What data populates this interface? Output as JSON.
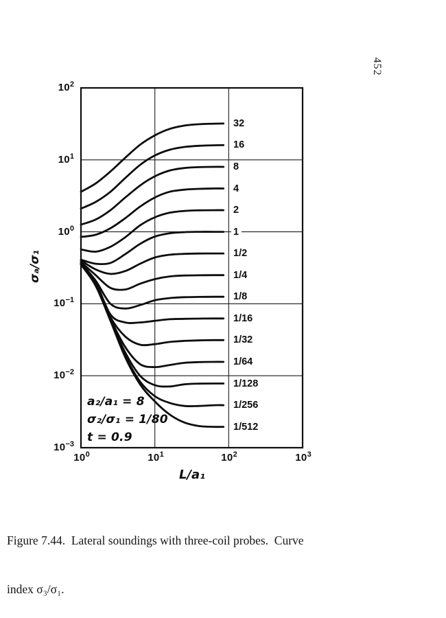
{
  "page": {
    "number": "452"
  },
  "caption": {
    "line1": "Figure 7.44.  Lateral soundings with three-coil probes.  Curve",
    "line2": "index σ₃/σ₁."
  },
  "chart_data": {
    "type": "line",
    "title": "",
    "xlabel": "L/a₁",
    "ylabel": "σₐ/σ₁",
    "xscale": "log",
    "yscale": "log",
    "xlim": [
      1,
      1000
    ],
    "ylim": [
      0.001,
      100
    ],
    "grid": true,
    "legend": "curve index labels at right of curves",
    "x_ticks": [
      {
        "base": "10",
        "exp": "0"
      },
      {
        "base": "10",
        "exp": "1"
      },
      {
        "base": "10",
        "exp": "2"
      },
      {
        "base": "10",
        "exp": "3"
      }
    ],
    "y_ticks": [
      {
        "base": "10",
        "exp": "2"
      },
      {
        "base": "10",
        "exp": "1"
      },
      {
        "base": "10",
        "exp": "0"
      },
      {
        "base": "10",
        "exp": "−1"
      },
      {
        "base": "10",
        "exp": "−2"
      },
      {
        "base": "10",
        "exp": "−3"
      }
    ],
    "annotations": [
      "a₂/a₁ = 8",
      "σ₂/σ₁ = 1/80",
      "t = 0.9"
    ],
    "x": [
      1,
      1.58,
      2.51,
      3.98,
      6.31,
      10,
      15.8,
      25.1,
      39.8,
      63.1,
      85
    ],
    "series": [
      {
        "label": "32",
        "index": 32,
        "values": [
          3.6,
          4.7,
          6.9,
          10.7,
          16.2,
          21.9,
          26.9,
          29.9,
          31.3,
          31.8,
          32
        ]
      },
      {
        "label": "16",
        "index": 16,
        "values": [
          2.1,
          2.6,
          3.6,
          5.6,
          8.5,
          11.5,
          13.8,
          15.1,
          15.7,
          15.95,
          16
        ]
      },
      {
        "label": "8",
        "index": 8,
        "values": [
          1.26,
          1.48,
          2.0,
          3.0,
          4.4,
          5.9,
          7.1,
          7.7,
          7.93,
          8.0,
          8.0
        ]
      },
      {
        "label": "4",
        "index": 4,
        "values": [
          0.85,
          0.91,
          1.12,
          1.55,
          2.24,
          3.0,
          3.6,
          3.85,
          3.96,
          4.0,
          4.0
        ]
      },
      {
        "label": "2",
        "index": 2,
        "values": [
          0.57,
          0.53,
          0.62,
          0.84,
          1.23,
          1.59,
          1.84,
          1.95,
          1.99,
          2.0,
          2.0
        ]
      },
      {
        "label": "1",
        "index": 1,
        "values": [
          0.41,
          0.36,
          0.37,
          0.49,
          0.68,
          0.86,
          0.955,
          0.99,
          1.0,
          1.0,
          1.0
        ]
      },
      {
        "label": "1/2",
        "index": 0.5,
        "values": [
          0.4,
          0.3,
          0.26,
          0.285,
          0.36,
          0.44,
          0.48,
          0.494,
          0.499,
          0.5,
          0.5
        ]
      },
      {
        "label": "1/4",
        "index": 0.25,
        "values": [
          0.38,
          0.25,
          0.166,
          0.158,
          0.19,
          0.22,
          0.24,
          0.247,
          0.249,
          0.25,
          0.25
        ]
      },
      {
        "label": "1/8",
        "index": 0.125,
        "values": [
          0.37,
          0.21,
          0.1,
          0.086,
          0.096,
          0.112,
          0.12,
          0.1235,
          0.1245,
          0.125,
          0.125
        ]
      },
      {
        "label": "1/16",
        "index": 0.0625,
        "values": [
          0.36,
          0.2,
          0.071,
          0.055,
          0.055,
          0.058,
          0.061,
          0.0618,
          0.0622,
          0.0625,
          0.0625
        ]
      },
      {
        "label": "1/32",
        "index": 0.03125,
        "values": [
          0.36,
          0.19,
          0.065,
          0.035,
          0.027,
          0.0275,
          0.0295,
          0.0305,
          0.031,
          0.03125,
          0.03125
        ]
      },
      {
        "label": "1/64",
        "index": 0.015625,
        "values": [
          0.355,
          0.186,
          0.062,
          0.025,
          0.0145,
          0.0132,
          0.0141,
          0.0151,
          0.0155,
          0.0156,
          0.0156
        ]
      },
      {
        "label": "1/128",
        "index": 0.0078125,
        "values": [
          0.355,
          0.182,
          0.06,
          0.021,
          0.01,
          0.0074,
          0.0071,
          0.0076,
          0.00776,
          0.0078,
          0.0078
        ]
      },
      {
        "label": "1/256",
        "index": 0.00390625,
        "values": [
          0.355,
          0.182,
          0.059,
          0.019,
          0.0083,
          0.0052,
          0.0042,
          0.0038,
          0.0038,
          0.0039,
          0.0039
        ]
      },
      {
        "label": "1/512",
        "index": 0.001953125,
        "values": [
          0.35,
          0.178,
          0.058,
          0.018,
          0.0076,
          0.0044,
          0.0029,
          0.00224,
          0.002,
          0.00195,
          0.00195
        ]
      }
    ]
  }
}
